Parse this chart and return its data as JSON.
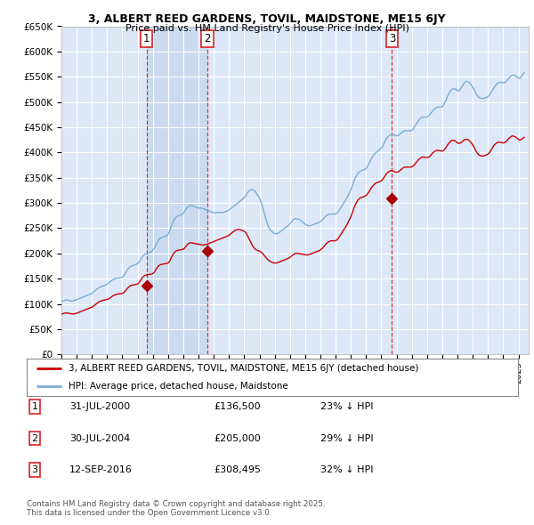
{
  "title_line1": "3, ALBERT REED GARDENS, TOVIL, MAIDSTONE, ME15 6JY",
  "title_line2": "Price paid vs. HM Land Registry's House Price Index (HPI)",
  "background_color": "#ffffff",
  "plot_bg_color": "#dce8f8",
  "grid_color": "#ffffff",
  "red_line_color": "#cc0000",
  "blue_line_color": "#7aadd4",
  "sale_marker_color": "#aa0000",
  "vline_color": "#dd2222",
  "shade_color": "#c8daf0",
  "sale_dates": [
    "2000-07-31",
    "2004-07-30",
    "2016-09-12"
  ],
  "sale_prices": [
    136500,
    205000,
    308495
  ],
  "sale_labels": [
    "1",
    "2",
    "3"
  ],
  "legend_label_red": "3, ALBERT REED GARDENS, TOVIL, MAIDSTONE, ME15 6JY (detached house)",
  "legend_label_blue": "HPI: Average price, detached house, Maidstone",
  "table_rows": [
    [
      "1",
      "31-JUL-2000",
      "£136,500",
      "23% ↓ HPI"
    ],
    [
      "2",
      "30-JUL-2004",
      "£205,000",
      "29% ↓ HPI"
    ],
    [
      "3",
      "12-SEP-2016",
      "£308,495",
      "32% ↓ HPI"
    ]
  ],
  "footnote": "Contains HM Land Registry data © Crown copyright and database right 2025.\nThis data is licensed under the Open Government Licence v3.0.",
  "ylim_max": 650000,
  "ylim_min": 0,
  "ytick_step": 50000,
  "hpi_monthly": {
    "start_year": 1995,
    "start_month": 1,
    "values": [
      105000,
      106000,
      107000,
      107500,
      108000,
      107000,
      106500,
      106000,
      105500,
      106000,
      107000,
      108000,
      109000,
      110000,
      111000,
      112000,
      113000,
      114000,
      115000,
      116000,
      117000,
      118000,
      119000,
      120000,
      122000,
      124000,
      126000,
      128000,
      130000,
      132000,
      133000,
      134000,
      135000,
      136000,
      137000,
      138000,
      140000,
      142000,
      144000,
      146000,
      148000,
      149000,
      150000,
      151000,
      151000,
      151500,
      152000,
      152500,
      154000,
      157000,
      161000,
      165000,
      169000,
      172000,
      174000,
      175000,
      176000,
      177000,
      178000,
      179000,
      181000,
      184000,
      188000,
      192000,
      196000,
      198000,
      199000,
      200000,
      201000,
      202000,
      203000,
      205000,
      208000,
      212000,
      217000,
      222000,
      226000,
      229000,
      231000,
      232000,
      233000,
      234000,
      235000,
      236000,
      240000,
      246000,
      253000,
      260000,
      265000,
      269000,
      272000,
      274000,
      275000,
      276000,
      277000,
      278000,
      281000,
      285000,
      289000,
      292000,
      294000,
      295000,
      295000,
      294000,
      293000,
      292000,
      291000,
      290000,
      290000,
      290000,
      290000,
      289000,
      288000,
      287000,
      286000,
      285000,
      284000,
      283000,
      282000,
      281000,
      281000,
      281000,
      281000,
      281000,
      281000,
      281000,
      281000,
      281000,
      282000,
      283000,
      284000,
      285000,
      287000,
      289000,
      291000,
      293000,
      295000,
      297000,
      299000,
      301000,
      303000,
      305000,
      307000,
      309000,
      312000,
      316000,
      320000,
      323000,
      325000,
      326000,
      326000,
      325000,
      323000,
      320000,
      316000,
      312000,
      307000,
      300000,
      292000,
      283000,
      274000,
      265000,
      257000,
      251000,
      247000,
      244000,
      242000,
      240000,
      239000,
      239000,
      240000,
      241000,
      243000,
      245000,
      247000,
      249000,
      251000,
      253000,
      255000,
      257000,
      260000,
      263000,
      266000,
      268000,
      269000,
      269000,
      268000,
      267000,
      265000,
      263000,
      261000,
      259000,
      257000,
      256000,
      255000,
      255000,
      255000,
      256000,
      257000,
      258000,
      259000,
      260000,
      261000,
      262000,
      264000,
      266000,
      269000,
      272000,
      274000,
      276000,
      277000,
      278000,
      278000,
      278000,
      278000,
      278000,
      279000,
      281000,
      284000,
      288000,
      292000,
      296000,
      300000,
      304000,
      308000,
      313000,
      318000,
      323000,
      329000,
      336000,
      343000,
      349000,
      354000,
      358000,
      361000,
      363000,
      364000,
      365000,
      366000,
      367000,
      370000,
      374000,
      379000,
      384000,
      389000,
      393000,
      396000,
      399000,
      401000,
      403000,
      405000,
      407000,
      410000,
      415000,
      420000,
      425000,
      429000,
      432000,
      434000,
      435000,
      435000,
      435000,
      434000,
      433000,
      433000,
      434000,
      436000,
      438000,
      440000,
      442000,
      443000,
      443000,
      443000,
      443000,
      443000,
      443000,
      445000,
      448000,
      452000,
      456000,
      460000,
      464000,
      467000,
      469000,
      470000,
      470000,
      470000,
      470000,
      471000,
      473000,
      476000,
      479000,
      482000,
      485000,
      487000,
      489000,
      490000,
      490000,
      490000,
      490000,
      492000,
      496000,
      501000,
      507000,
      513000,
      518000,
      522000,
      525000,
      526000,
      526000,
      525000,
      523000,
      522000,
      523000,
      526000,
      530000,
      534000,
      538000,
      540000,
      541000,
      540000,
      538000,
      535000,
      531000,
      527000,
      522000,
      517000,
      513000,
      510000,
      508000,
      507000,
      507000,
      507000,
      508000,
      509000,
      510000,
      512000,
      515000,
      519000,
      523000,
      527000,
      531000,
      534000,
      537000,
      538000,
      539000,
      539000,
      538000,
      538000,
      539000,
      541000,
      544000,
      547000,
      550000,
      552000,
      553000,
      553000,
      552000,
      550000,
      548000,
      547000,
      548000,
      551000,
      555000,
      558000
    ]
  },
  "red_monthly": {
    "start_year": 1995,
    "start_month": 1,
    "values": [
      80000,
      81000,
      81500,
      82000,
      82000,
      81500,
      81000,
      80500,
      80000,
      80000,
      80500,
      81000,
      82000,
      83000,
      84000,
      85000,
      86000,
      87000,
      88000,
      89000,
      90000,
      91000,
      92000,
      93000,
      94000,
      96000,
      98000,
      100000,
      102000,
      104000,
      105000,
      106000,
      107000,
      107500,
      108000,
      108500,
      109000,
      110000,
      112000,
      114000,
      116000,
      117000,
      118000,
      119000,
      119500,
      120000,
      120000,
      120500,
      121000,
      123000,
      126000,
      129000,
      132000,
      134000,
      136000,
      137000,
      137500,
      138000,
      138500,
      139000,
      140000,
      143000,
      147000,
      151000,
      154000,
      156000,
      157000,
      157500,
      158000,
      158500,
      159000,
      159500,
      161000,
      164000,
      168000,
      172000,
      175000,
      177000,
      178000,
      178500,
      179000,
      179500,
      180000,
      180500,
      182000,
      186000,
      191000,
      196000,
      200000,
      203000,
      205000,
      206000,
      206500,
      207000,
      207500,
      208000,
      209000,
      212000,
      215000,
      218000,
      220000,
      221000,
      221000,
      220500,
      220000,
      219500,
      219000,
      218500,
      218000,
      217500,
      217000,
      217000,
      217000,
      217500,
      218000,
      219000,
      220000,
      221000,
      222000,
      223000,
      224000,
      225000,
      226000,
      227000,
      228000,
      229000,
      230000,
      231000,
      232000,
      233000,
      234000,
      235000,
      237000,
      239000,
      241000,
      243000,
      245000,
      246000,
      247000,
      247500,
      247000,
      246500,
      245500,
      244500,
      243000,
      240000,
      236000,
      231000,
      226000,
      221000,
      216000,
      212000,
      209000,
      207000,
      206000,
      205000,
      204000,
      202000,
      200000,
      197000,
      194000,
      191000,
      188000,
      186000,
      184000,
      183000,
      182000,
      181000,
      181000,
      181000,
      182000,
      183000,
      184000,
      185000,
      186000,
      187000,
      188000,
      189000,
      190000,
      191000,
      193000,
      195000,
      197000,
      199000,
      200000,
      200500,
      200000,
      199500,
      199000,
      198500,
      198000,
      197500,
      197000,
      197000,
      197500,
      198000,
      199000,
      200000,
      201000,
      202000,
      203000,
      204000,
      205000,
      206000,
      208000,
      210000,
      213000,
      216000,
      219000,
      221000,
      223000,
      224000,
      225000,
      225000,
      225000,
      225000,
      226000,
      228000,
      231000,
      235000,
      239000,
      243000,
      247000,
      251000,
      255000,
      260000,
      265000,
      270000,
      276000,
      283000,
      290000,
      296000,
      301000,
      305000,
      308000,
      310000,
      311000,
      312000,
      313000,
      314000,
      316000,
      319000,
      323000,
      327000,
      331000,
      334000,
      337000,
      339000,
      340000,
      341000,
      342000,
      343000,
      345000,
      348000,
      352000,
      356000,
      359000,
      361000,
      363000,
      364000,
      364000,
      363000,
      362000,
      361000,
      361000,
      362000,
      364000,
      366000,
      368000,
      370000,
      371000,
      371000,
      371000,
      371000,
      371000,
      371000,
      372000,
      374000,
      377000,
      380000,
      383000,
      386000,
      388000,
      390000,
      391000,
      391000,
      390000,
      390000,
      390000,
      391000,
      393000,
      396000,
      399000,
      401000,
      403000,
      404000,
      404000,
      404000,
      403000,
      403000,
      403000,
      405000,
      408000,
      412000,
      416000,
      419000,
      422000,
      424000,
      424000,
      424000,
      422000,
      420000,
      418000,
      418000,
      419000,
      421000,
      423000,
      425000,
      426000,
      426000,
      425000,
      423000,
      420000,
      417000,
      413000,
      408000,
      403000,
      399000,
      396000,
      394000,
      393000,
      393000,
      393000,
      394000,
      395000,
      396000,
      398000,
      401000,
      405000,
      409000,
      413000,
      416000,
      418000,
      420000,
      420000,
      420000,
      420000,
      419000,
      419000,
      420000,
      422000,
      425000,
      428000,
      430000,
      432000,
      433000,
      432000,
      431000,
      429000,
      427000,
      425000,
      425000,
      426000,
      428000,
      430000
    ]
  }
}
